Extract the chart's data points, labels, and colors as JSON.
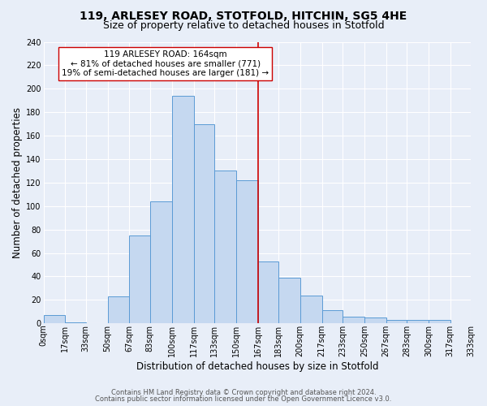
{
  "title": "119, ARLESEY ROAD, STOTFOLD, HITCHIN, SG5 4HE",
  "subtitle": "Size of property relative to detached houses in Stotfold",
  "xlabel": "Distribution of detached houses by size in Stotfold",
  "ylabel": "Number of detached properties",
  "bin_edges": [
    0,
    17,
    33,
    50,
    67,
    83,
    100,
    117,
    133,
    150,
    167,
    183,
    200,
    217,
    233,
    250,
    267,
    283,
    300,
    317,
    333
  ],
  "bar_heights": [
    7,
    1,
    0,
    23,
    75,
    104,
    194,
    170,
    130,
    122,
    53,
    39,
    24,
    11,
    6,
    5,
    3,
    3,
    3,
    0
  ],
  "tick_labels": [
    "0sqm",
    "17sqm",
    "33sqm",
    "50sqm",
    "67sqm",
    "83sqm",
    "100sqm",
    "117sqm",
    "133sqm",
    "150sqm",
    "167sqm",
    "183sqm",
    "200sqm",
    "217sqm",
    "233sqm",
    "250sqm",
    "267sqm",
    "283sqm",
    "300sqm",
    "317sqm",
    "333sqm"
  ],
  "bar_color": "#c5d8f0",
  "bar_edge_color": "#5b9bd5",
  "vline_x": 167,
  "vline_color": "#cc0000",
  "annotation_title": "119 ARLESEY ROAD: 164sqm",
  "annotation_line1": "← 81% of detached houses are smaller (771)",
  "annotation_line2": "19% of semi-detached houses are larger (181) →",
  "annotation_box_color": "#ffffff",
  "annotation_box_edge_color": "#cc0000",
  "ylim": [
    0,
    240
  ],
  "yticks": [
    0,
    20,
    40,
    60,
    80,
    100,
    120,
    140,
    160,
    180,
    200,
    220,
    240
  ],
  "footer1": "Contains HM Land Registry data © Crown copyright and database right 2024.",
  "footer2": "Contains public sector information licensed under the Open Government Licence v3.0.",
  "bg_color": "#e8eef8",
  "grid_color": "#ffffff",
  "title_fontsize": 10,
  "subtitle_fontsize": 9,
  "axis_label_fontsize": 8.5,
  "tick_fontsize": 7,
  "annotation_fontsize": 7.5,
  "footer_fontsize": 6
}
